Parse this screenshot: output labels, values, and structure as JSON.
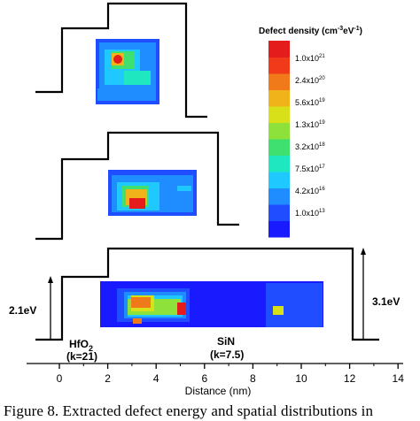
{
  "legend": {
    "title_main": "Defect density (cm",
    "title_exp1": "-3",
    "title_mid": "eV",
    "title_exp2": "-1",
    "title_end": ")",
    "colors": [
      "#1a1aff",
      "#1f4dff",
      "#1f8cff",
      "#1fc8ff",
      "#1fe8c0",
      "#3fe070",
      "#8ee03a",
      "#d8e01a",
      "#f0b41a",
      "#f07a1a",
      "#f03a1a",
      "#e51c1c"
    ],
    "tick_labels": [
      {
        "base": "1.0x10",
        "exp": "13"
      },
      {
        "base": "4.2x10",
        "exp": "16"
      },
      {
        "base": "7.5x10",
        "exp": "17"
      },
      {
        "base": "3.2x10",
        "exp": "18"
      },
      {
        "base": "1.3x10",
        "exp": "19"
      },
      {
        "base": "5.6x10",
        "exp": "19"
      },
      {
        "base": "2.4x10",
        "exp": "20"
      },
      {
        "base": "1.0x10",
        "exp": "21"
      }
    ]
  },
  "axis": {
    "label": "Distance (nm)",
    "ticks": [
      "0",
      "2",
      "4",
      "6",
      "8",
      "10",
      "12",
      "14"
    ],
    "range": [
      -1.4,
      14
    ]
  },
  "annotations": {
    "left_barrier": "2.1eV",
    "right_barrier": "3.1eV",
    "hfo2_name": "HfO",
    "hfo2_sub": "2",
    "hfo2_k": "(k=21)",
    "sin_name": "SiN",
    "sin_k": "(k=7.5)"
  },
  "caption": "Figure 8. Extracted defect energy and spatial distributions in",
  "colors": {
    "band_line": "#000000",
    "map_background": "#1a1aff"
  }
}
